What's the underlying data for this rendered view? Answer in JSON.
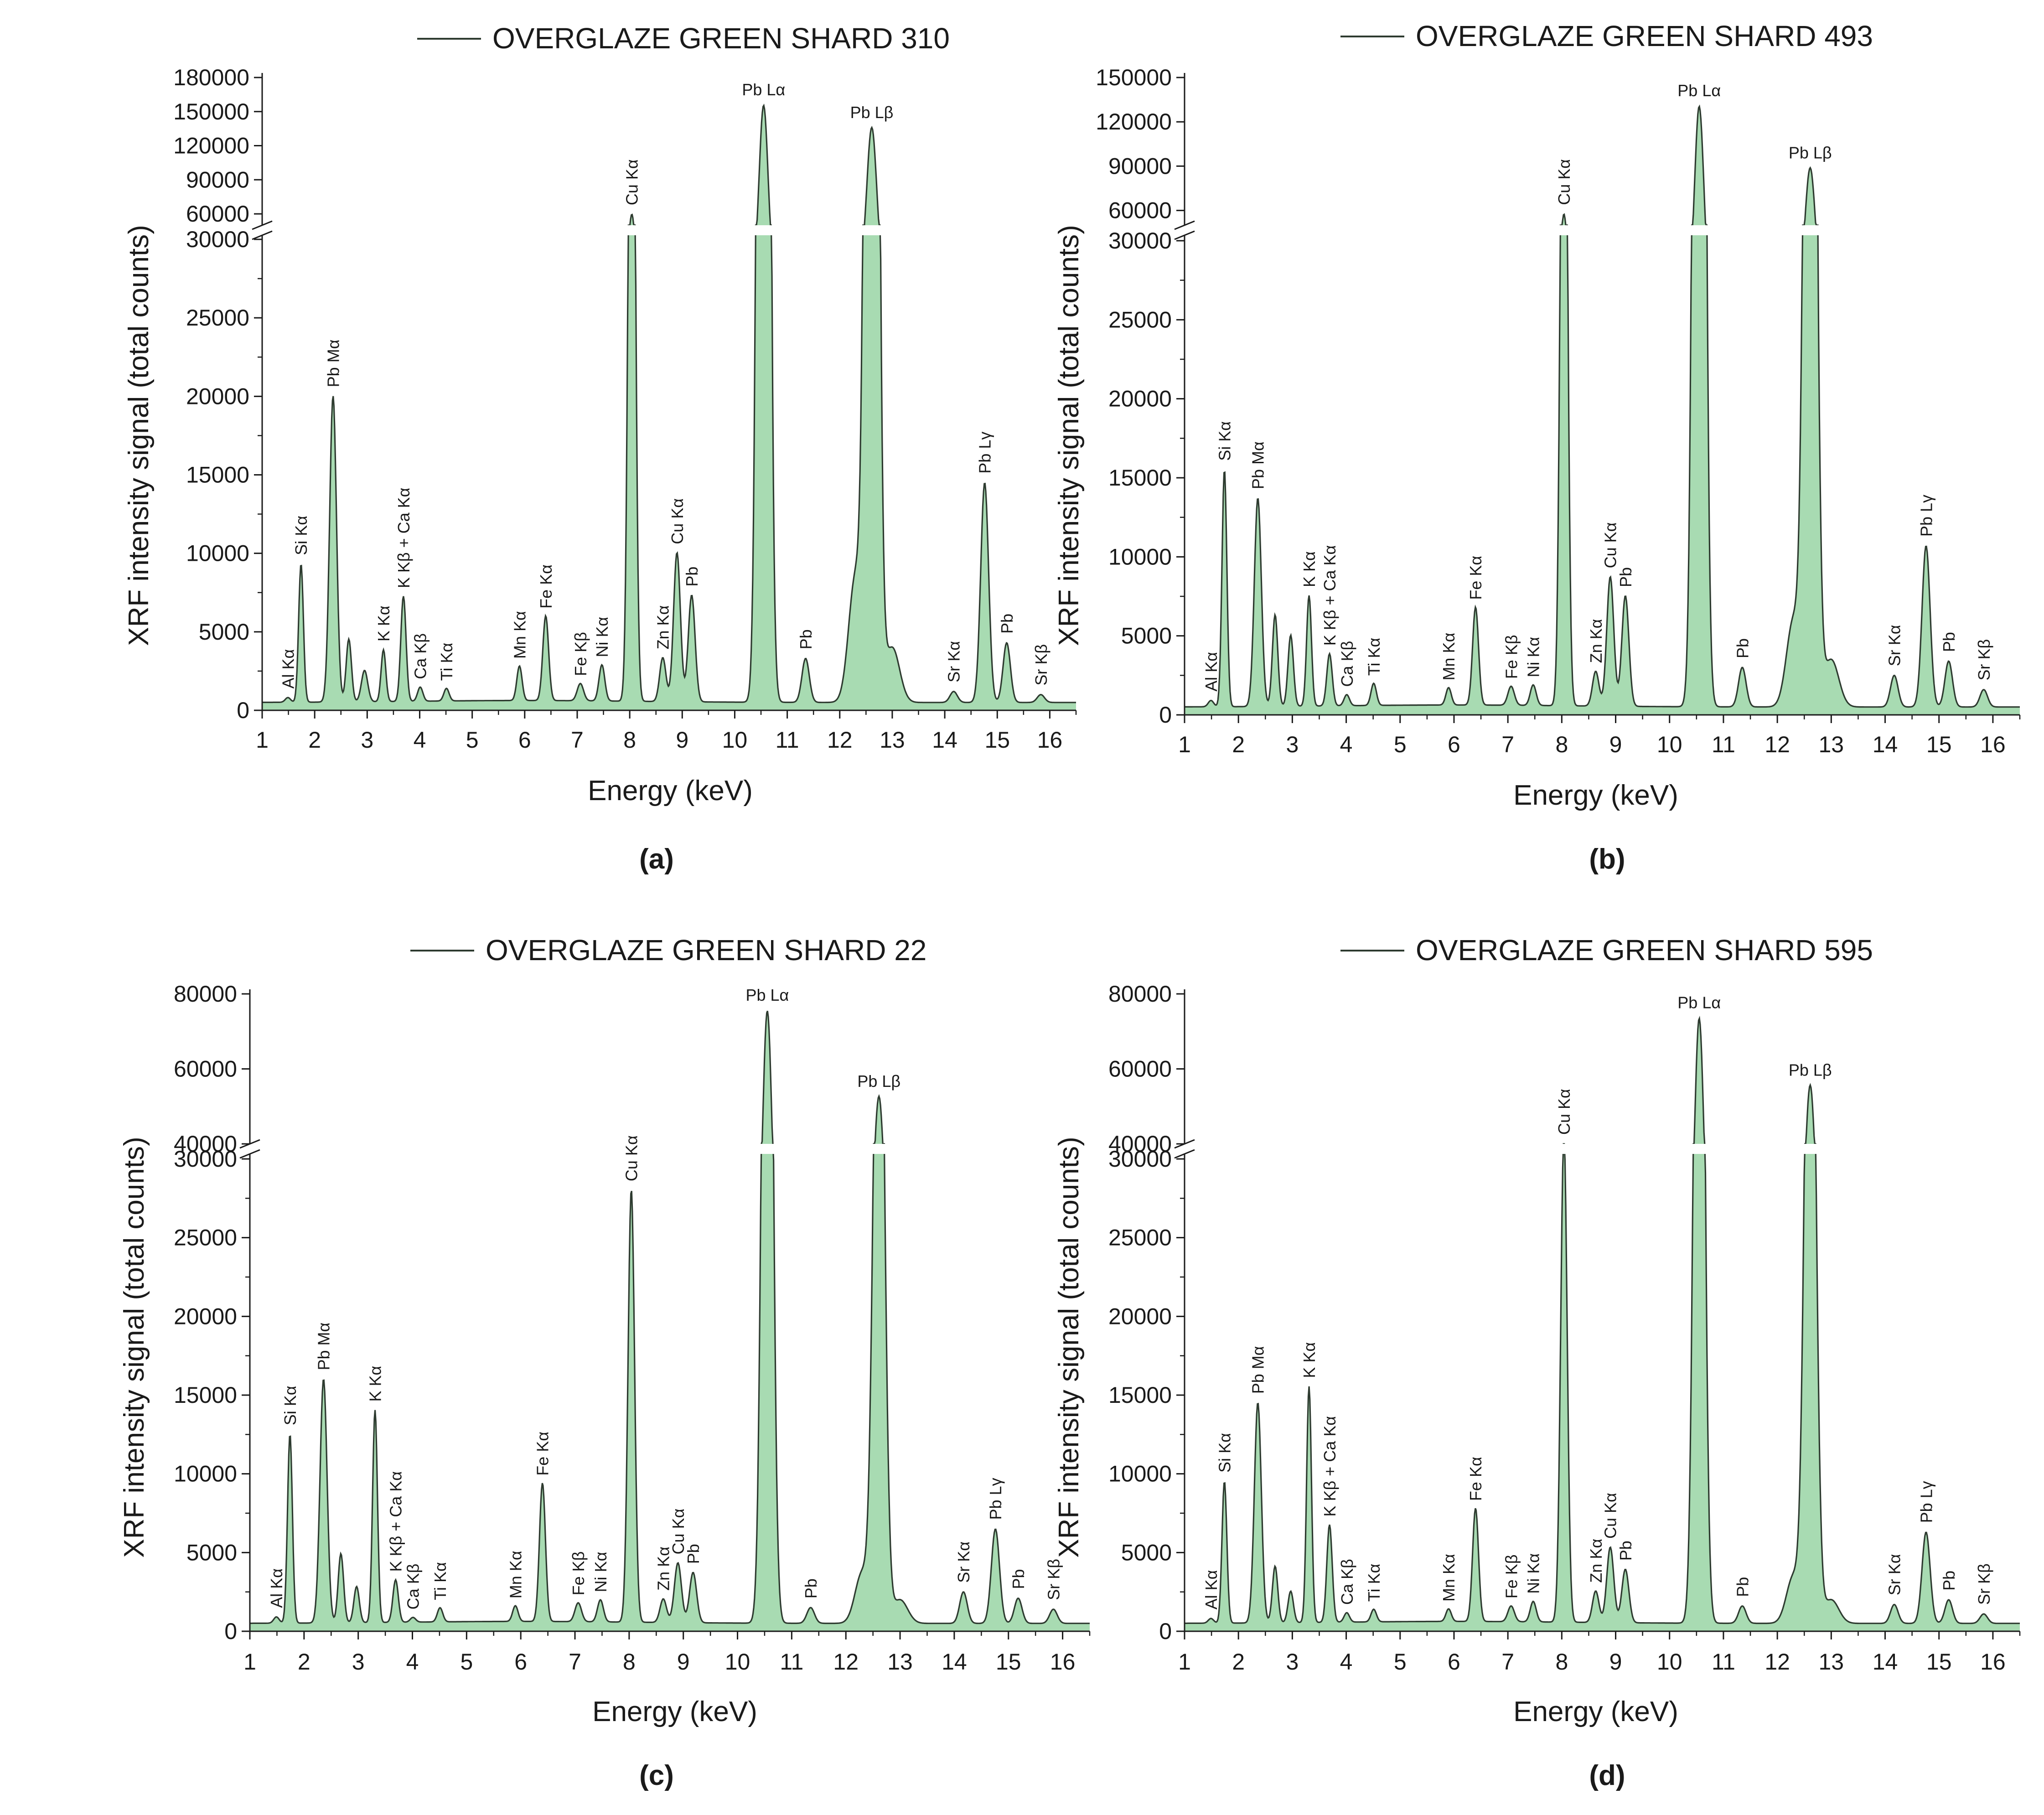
{
  "figure": {
    "y_axis_title": "XRF intensity signal (total counts)",
    "x_axis_title": "Energy (keV)"
  },
  "chart_data": [
    {
      "type": "area",
      "title": "OVERGLAZE GREEN SHARD 310",
      "legend": "OVERGLAZE GREEN SHARD 310",
      "panel_letter": "(a)",
      "xlabel": "Energy (keV)",
      "ylabel": "XRF intensity signal (total counts)",
      "xlim": [
        1,
        16.5
      ],
      "x_ticks": [
        1,
        2,
        3,
        4,
        5,
        6,
        7,
        8,
        9,
        10,
        11,
        12,
        13,
        14,
        15,
        16
      ],
      "y_lower": {
        "range": [
          0,
          30000
        ],
        "ticks": [
          0,
          5000,
          10000,
          15000,
          20000,
          25000,
          30000
        ]
      },
      "y_upper": {
        "range": [
          50000,
          180000
        ],
        "ticks": [
          60000,
          90000,
          120000,
          150000,
          180000
        ]
      },
      "fill_color": "#a8dbb2",
      "line_color": "#2e3b30",
      "baseline": 500,
      "peaks": [
        {
          "x": 1.49,
          "y": 300,
          "w": 0.05,
          "label": "Al Kα"
        },
        {
          "x": 1.74,
          "y": 8800,
          "w": 0.045,
          "label": "Si Kα"
        },
        {
          "x": 2.35,
          "y": 19500,
          "w": 0.065,
          "label": "Pb Mα"
        },
        {
          "x": 2.65,
          "y": 4000,
          "w": 0.05
        },
        {
          "x": 2.95,
          "y": 2000,
          "w": 0.06
        },
        {
          "x": 3.31,
          "y": 3300,
          "w": 0.045,
          "label": "K Kα"
        },
        {
          "x": 3.69,
          "y": 6700,
          "w": 0.05,
          "label": "K Kβ + Ca Kα"
        },
        {
          "x": 4.01,
          "y": 900,
          "w": 0.05,
          "label": "Ca Kβ"
        },
        {
          "x": 4.51,
          "y": 800,
          "w": 0.05,
          "label": "Ti Kα"
        },
        {
          "x": 5.9,
          "y": 2200,
          "w": 0.05,
          "label": "Mn Kα"
        },
        {
          "x": 6.4,
          "y": 5400,
          "w": 0.055,
          "label": "Fe Kα"
        },
        {
          "x": 7.06,
          "y": 1100,
          "w": 0.06,
          "label": "Fe Kβ"
        },
        {
          "x": 7.47,
          "y": 2300,
          "w": 0.055,
          "label": "Ni Kα"
        },
        {
          "x": 8.04,
          "y": 59000,
          "w": 0.06,
          "label": "Cu Kα"
        },
        {
          "x": 8.63,
          "y": 2800,
          "w": 0.06,
          "label": "Zn Kα"
        },
        {
          "x": 8.9,
          "y": 9500,
          "w": 0.065,
          "label": "Cu Kα"
        },
        {
          "x": 9.18,
          "y": 6800,
          "w": 0.065,
          "label": "Pb"
        },
        {
          "x": 10.55,
          "y": 155000,
          "w": 0.085,
          "label": "Pb Lα"
        },
        {
          "x": 11.35,
          "y": 2800,
          "w": 0.07,
          "label": "Pb"
        },
        {
          "x": 12.3,
          "y": 8000,
          "w": 0.13
        },
        {
          "x": 12.61,
          "y": 135000,
          "w": 0.095,
          "label": "Pb Lβ"
        },
        {
          "x": 13.0,
          "y": 3500,
          "w": 0.14
        },
        {
          "x": 14.17,
          "y": 700,
          "w": 0.07,
          "label": "Sr Kα"
        },
        {
          "x": 14.76,
          "y": 14000,
          "w": 0.075,
          "label": "Pb Lγ"
        },
        {
          "x": 15.18,
          "y": 3800,
          "w": 0.07,
          "label": "Pb"
        },
        {
          "x": 15.83,
          "y": 500,
          "w": 0.07,
          "label": "Sr Kβ"
        }
      ]
    },
    {
      "type": "area",
      "title": "OVERGLAZE GREEN SHARD 493",
      "legend": "OVERGLAZE GREEN SHARD 493",
      "panel_letter": "(b)",
      "xlabel": "Energy (keV)",
      "ylabel": "XRF intensity signal (total counts)",
      "xlim": [
        1,
        16.5
      ],
      "x_ticks": [
        1,
        2,
        3,
        4,
        5,
        6,
        7,
        8,
        9,
        10,
        11,
        12,
        13,
        14,
        15,
        16
      ],
      "y_lower": {
        "range": [
          0,
          30000
        ],
        "ticks": [
          0,
          5000,
          10000,
          15000,
          20000,
          25000,
          30000
        ]
      },
      "y_upper": {
        "range": [
          50000,
          150000
        ],
        "ticks": [
          60000,
          90000,
          120000,
          150000
        ]
      },
      "fill_color": "#a8dbb2",
      "line_color": "#2e3b30",
      "baseline": 500,
      "peaks": [
        {
          "x": 1.49,
          "y": 400,
          "w": 0.05,
          "label": "Al Kα"
        },
        {
          "x": 1.74,
          "y": 15000,
          "w": 0.045,
          "label": "Si Kα"
        },
        {
          "x": 2.36,
          "y": 13200,
          "w": 0.065,
          "label": "Pb Mα"
        },
        {
          "x": 2.68,
          "y": 5800,
          "w": 0.05
        },
        {
          "x": 2.97,
          "y": 4500,
          "w": 0.05
        },
        {
          "x": 3.31,
          "y": 7000,
          "w": 0.045,
          "label": "K Kα"
        },
        {
          "x": 3.69,
          "y": 3300,
          "w": 0.05,
          "label": "K Kβ + Ca Kα"
        },
        {
          "x": 4.01,
          "y": 700,
          "w": 0.05,
          "label": "Ca Kβ"
        },
        {
          "x": 4.51,
          "y": 1400,
          "w": 0.05,
          "label": "Ti Kα"
        },
        {
          "x": 5.9,
          "y": 1100,
          "w": 0.05,
          "label": "Mn Kα"
        },
        {
          "x": 6.4,
          "y": 6200,
          "w": 0.055,
          "label": "Fe Kα"
        },
        {
          "x": 7.06,
          "y": 1200,
          "w": 0.06,
          "label": "Fe Kβ"
        },
        {
          "x": 7.47,
          "y": 1300,
          "w": 0.055,
          "label": "Ni Kα"
        },
        {
          "x": 8.04,
          "y": 57000,
          "w": 0.06,
          "label": "Cu Kα"
        },
        {
          "x": 8.63,
          "y": 2200,
          "w": 0.06,
          "label": "Zn Kα"
        },
        {
          "x": 8.9,
          "y": 8200,
          "w": 0.065,
          "label": "Cu Kα"
        },
        {
          "x": 9.18,
          "y": 7000,
          "w": 0.065,
          "label": "Pb"
        },
        {
          "x": 10.55,
          "y": 130000,
          "w": 0.085,
          "label": "Pb Lα"
        },
        {
          "x": 11.35,
          "y": 2500,
          "w": 0.07,
          "label": "Pb"
        },
        {
          "x": 12.3,
          "y": 5500,
          "w": 0.13
        },
        {
          "x": 12.61,
          "y": 88000,
          "w": 0.095,
          "label": "Pb Lβ"
        },
        {
          "x": 13.0,
          "y": 3000,
          "w": 0.14
        },
        {
          "x": 14.17,
          "y": 2000,
          "w": 0.07,
          "label": "Sr Kα"
        },
        {
          "x": 14.76,
          "y": 10200,
          "w": 0.075,
          "label": "Pb Lγ"
        },
        {
          "x": 15.18,
          "y": 2900,
          "w": 0.07,
          "label": "Pb"
        },
        {
          "x": 15.83,
          "y": 1100,
          "w": 0.07,
          "label": "Sr Kβ"
        }
      ]
    },
    {
      "type": "area",
      "title": "OVERGLAZE GREEN SHARD 22",
      "legend": "OVERGLAZE GREEN SHARD 22",
      "panel_letter": "(c)",
      "xlabel": "Energy (keV)",
      "ylabel": "XRF intensity signal (total counts)",
      "xlim": [
        1,
        16.5
      ],
      "x_ticks": [
        1,
        2,
        3,
        4,
        5,
        6,
        7,
        8,
        9,
        10,
        11,
        12,
        13,
        14,
        15,
        16
      ],
      "y_lower": {
        "range": [
          0,
          30000
        ],
        "ticks": [
          0,
          5000,
          10000,
          15000,
          20000,
          25000,
          30000
        ]
      },
      "y_upper": {
        "range": [
          40000,
          80000
        ],
        "ticks": [
          40000,
          60000,
          80000
        ]
      },
      "fill_color": "#a8dbb2",
      "line_color": "#2e3b30",
      "baseline": 500,
      "peaks": [
        {
          "x": 1.49,
          "y": 400,
          "w": 0.05,
          "label": "Al Kα"
        },
        {
          "x": 1.74,
          "y": 12000,
          "w": 0.045,
          "label": "Si Kα"
        },
        {
          "x": 2.36,
          "y": 15500,
          "w": 0.065,
          "label": "Pb Mα"
        },
        {
          "x": 2.68,
          "y": 4400,
          "w": 0.05
        },
        {
          "x": 2.97,
          "y": 2300,
          "w": 0.05
        },
        {
          "x": 3.31,
          "y": 13500,
          "w": 0.045,
          "label": "K Kα"
        },
        {
          "x": 3.69,
          "y": 2700,
          "w": 0.05,
          "label": "K Kβ + Ca Kα"
        },
        {
          "x": 4.01,
          "y": 300,
          "w": 0.05,
          "label": "Ca Kβ"
        },
        {
          "x": 4.51,
          "y": 900,
          "w": 0.05,
          "label": "Ti Kα"
        },
        {
          "x": 5.9,
          "y": 1000,
          "w": 0.05,
          "label": "Mn Kα"
        },
        {
          "x": 6.4,
          "y": 8800,
          "w": 0.055,
          "label": "Fe Kα"
        },
        {
          "x": 7.06,
          "y": 1200,
          "w": 0.06,
          "label": "Fe Kβ"
        },
        {
          "x": 7.47,
          "y": 1400,
          "w": 0.055,
          "label": "Ni Kα"
        },
        {
          "x": 8.04,
          "y": 27500,
          "w": 0.06,
          "label": "Cu Kα"
        },
        {
          "x": 8.63,
          "y": 1500,
          "w": 0.06,
          "label": "Zn Kα"
        },
        {
          "x": 8.9,
          "y": 3800,
          "w": 0.065,
          "label": "Cu Kα"
        },
        {
          "x": 9.18,
          "y": 3200,
          "w": 0.065,
          "label": "Pb"
        },
        {
          "x": 10.55,
          "y": 75000,
          "w": 0.085,
          "label": "Pb Lα"
        },
        {
          "x": 11.35,
          "y": 1000,
          "w": 0.07,
          "label": "Pb"
        },
        {
          "x": 12.3,
          "y": 3200,
          "w": 0.13
        },
        {
          "x": 12.61,
          "y": 52000,
          "w": 0.095,
          "label": "Pb Lβ"
        },
        {
          "x": 13.0,
          "y": 1500,
          "w": 0.14
        },
        {
          "x": 14.17,
          "y": 2000,
          "w": 0.07,
          "label": "Sr Kα"
        },
        {
          "x": 14.76,
          "y": 6000,
          "w": 0.075,
          "label": "Pb Lγ"
        },
        {
          "x": 15.18,
          "y": 1600,
          "w": 0.07,
          "label": "Pb"
        },
        {
          "x": 15.83,
          "y": 900,
          "w": 0.07,
          "label": "Sr Kβ"
        }
      ]
    },
    {
      "type": "area",
      "title": "OVERGLAZE GREEN SHARD 595",
      "legend": "OVERGLAZE GREEN SHARD 595",
      "panel_letter": "(d)",
      "xlabel": "Energy (keV)",
      "ylabel": "XRF intensity signal (total counts)",
      "xlim": [
        1,
        16.5
      ],
      "x_ticks": [
        1,
        2,
        3,
        4,
        5,
        6,
        7,
        8,
        9,
        10,
        11,
        12,
        13,
        14,
        15,
        16
      ],
      "y_lower": {
        "range": [
          0,
          30000
        ],
        "ticks": [
          0,
          5000,
          10000,
          15000,
          20000,
          25000,
          30000
        ]
      },
      "y_upper": {
        "range": [
          40000,
          80000
        ],
        "ticks": [
          40000,
          60000,
          80000
        ]
      },
      "fill_color": "#a8dbb2",
      "line_color": "#2e3b30",
      "baseline": 500,
      "peaks": [
        {
          "x": 1.49,
          "y": 300,
          "w": 0.05,
          "label": "Al Kα"
        },
        {
          "x": 1.74,
          "y": 9000,
          "w": 0.045,
          "label": "Si Kα"
        },
        {
          "x": 2.36,
          "y": 14000,
          "w": 0.065,
          "label": "Pb Mα"
        },
        {
          "x": 2.68,
          "y": 3600,
          "w": 0.05
        },
        {
          "x": 2.97,
          "y": 2000,
          "w": 0.05
        },
        {
          "x": 3.31,
          "y": 15000,
          "w": 0.045,
          "label": "K Kα"
        },
        {
          "x": 3.69,
          "y": 6200,
          "w": 0.05,
          "label": "K Kβ + Ca Kα"
        },
        {
          "x": 4.01,
          "y": 600,
          "w": 0.05,
          "label": "Ca Kβ"
        },
        {
          "x": 4.51,
          "y": 800,
          "w": 0.05,
          "label": "Ti Kα"
        },
        {
          "x": 5.9,
          "y": 800,
          "w": 0.05,
          "label": "Mn Kα"
        },
        {
          "x": 6.4,
          "y": 7200,
          "w": 0.055,
          "label": "Fe Kα"
        },
        {
          "x": 7.06,
          "y": 1000,
          "w": 0.06,
          "label": "Fe Kβ"
        },
        {
          "x": 7.47,
          "y": 1300,
          "w": 0.055,
          "label": "Ni Kα"
        },
        {
          "x": 8.04,
          "y": 31000,
          "w": 0.06,
          "label": "Cu Kα"
        },
        {
          "x": 8.63,
          "y": 2000,
          "w": 0.06,
          "label": "Zn Kα"
        },
        {
          "x": 8.9,
          "y": 4800,
          "w": 0.065,
          "label": "Cu Kα"
        },
        {
          "x": 9.18,
          "y": 3400,
          "w": 0.065,
          "label": "Pb"
        },
        {
          "x": 10.55,
          "y": 73000,
          "w": 0.085,
          "label": "Pb Lα"
        },
        {
          "x": 11.35,
          "y": 1100,
          "w": 0.07,
          "label": "Pb"
        },
        {
          "x": 12.3,
          "y": 3000,
          "w": 0.13
        },
        {
          "x": 12.61,
          "y": 55000,
          "w": 0.095,
          "label": "Pb Lβ"
        },
        {
          "x": 13.0,
          "y": 1500,
          "w": 0.14
        },
        {
          "x": 14.17,
          "y": 1200,
          "w": 0.07,
          "label": "Sr Kα"
        },
        {
          "x": 14.76,
          "y": 5800,
          "w": 0.075,
          "label": "Pb Lγ"
        },
        {
          "x": 15.18,
          "y": 1500,
          "w": 0.07,
          "label": "Pb"
        },
        {
          "x": 15.83,
          "y": 600,
          "w": 0.07,
          "label": "Sr Kβ"
        }
      ]
    }
  ]
}
